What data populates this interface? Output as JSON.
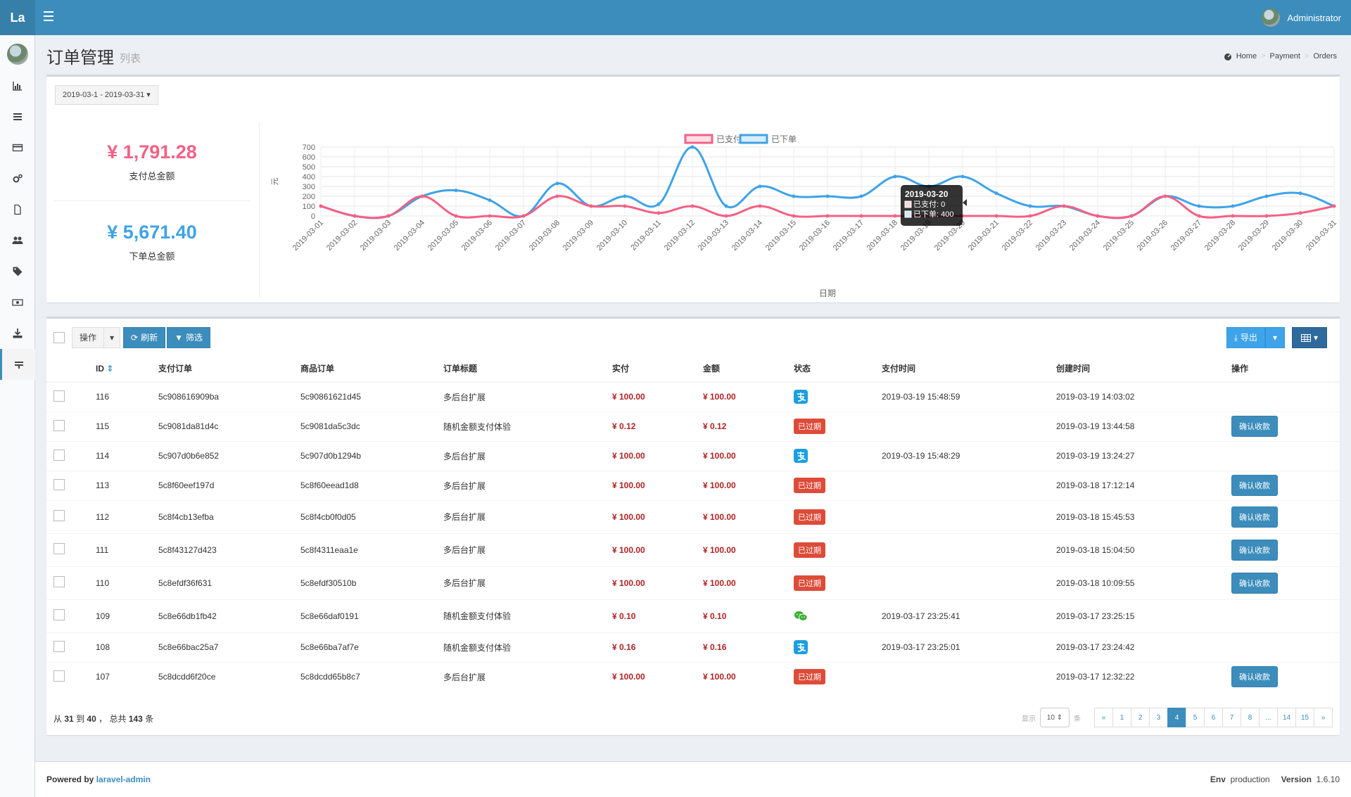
{
  "header": {
    "logo": "La",
    "user_name": "Administrator"
  },
  "page": {
    "title": "订单管理",
    "subtitle": "列表"
  },
  "breadcrumb": [
    "Home",
    "Payment",
    "Orders"
  ],
  "date_range": "2019-03-1 - 2019-03-31",
  "stats": {
    "paid_total": "¥ 1,791.28",
    "paid_label": "支付总金额",
    "order_total": "¥ 5,671.40",
    "order_label": "下单总金额"
  },
  "chart_data": {
    "type": "line",
    "legend": [
      "已支付",
      "已下单"
    ],
    "ylabel": "元",
    "xlabel": "日期",
    "ylim": [
      0,
      700
    ],
    "yticks": [
      0,
      100,
      200,
      300,
      400,
      500,
      600,
      700
    ],
    "categories": [
      "2019-03-01",
      "2019-03-02",
      "2019-03-03",
      "2019-03-04",
      "2019-03-05",
      "2019-03-06",
      "2019-03-07",
      "2019-03-08",
      "2019-03-09",
      "2019-03-10",
      "2019-03-11",
      "2019-03-12",
      "2019-03-13",
      "2019-03-14",
      "2019-03-15",
      "2019-03-16",
      "2019-03-17",
      "2019-03-18",
      "2019-03-19",
      "2019-03-20",
      "2019-03-21",
      "2019-03-22",
      "2019-03-23",
      "2019-03-24",
      "2019-03-25",
      "2019-03-26",
      "2019-03-27",
      "2019-03-28",
      "2019-03-29",
      "2019-03-30",
      "2019-03-31"
    ],
    "series": [
      {
        "name": "已支付",
        "color": "#f56084",
        "values": [
          100,
          0,
          0,
          200,
          0,
          0,
          0,
          200,
          100,
          100,
          30,
          100,
          0,
          100,
          0,
          0,
          0,
          0,
          0,
          0,
          0,
          0,
          100,
          0,
          0,
          200,
          0,
          0,
          0,
          30,
          100
        ]
      },
      {
        "name": "已下单",
        "color": "#3ea3e8",
        "values": [
          100,
          0,
          0,
          200,
          260,
          160,
          0,
          330,
          100,
          200,
          120,
          700,
          100,
          300,
          200,
          200,
          200,
          400,
          300,
          400,
          230,
          100,
          100,
          0,
          0,
          200,
          100,
          100,
          200,
          230,
          100
        ]
      }
    ],
    "tooltip": {
      "title": "2019-03-20",
      "line1": "已支付: 0",
      "line2": "已下单: 400"
    }
  },
  "toolbar": {
    "action": "操作",
    "refresh": "刷新",
    "filter": "筛选",
    "export": "导出"
  },
  "table": {
    "headers": [
      "ID",
      "支付订单",
      "商品订单",
      "订单标题",
      "实付",
      "金额",
      "状态",
      "支付时间",
      "创建时间",
      "操作"
    ],
    "confirm_label": "确认收款",
    "expired_label": "已过期",
    "rows": [
      {
        "id": "116",
        "pay_no": "5c908616909ba",
        "goods_no": "5c90861621d45",
        "title": "多后台扩展",
        "paid": "¥ 100.00",
        "amount": "¥ 100.00",
        "status": "alipay",
        "pay_time": "2019-03-19 15:48:59",
        "created": "2019-03-19 14:03:02",
        "action": false
      },
      {
        "id": "115",
        "pay_no": "5c9081da81d4c",
        "goods_no": "5c9081da5c3dc",
        "title": "随机金额支付体验",
        "paid": "¥ 0.12",
        "amount": "¥ 0.12",
        "status": "expired",
        "pay_time": "",
        "created": "2019-03-19 13:44:58",
        "action": true
      },
      {
        "id": "114",
        "pay_no": "5c907d0b6e852",
        "goods_no": "5c907d0b1294b",
        "title": "多后台扩展",
        "paid": "¥ 100.00",
        "amount": "¥ 100.00",
        "status": "alipay",
        "pay_time": "2019-03-19 15:48:29",
        "created": "2019-03-19 13:24:27",
        "action": false
      },
      {
        "id": "113",
        "pay_no": "5c8f60eef197d",
        "goods_no": "5c8f60eead1d8",
        "title": "多后台扩展",
        "paid": "¥ 100.00",
        "amount": "¥ 100.00",
        "status": "expired",
        "pay_time": "",
        "created": "2019-03-18 17:12:14",
        "action": true
      },
      {
        "id": "112",
        "pay_no": "5c8f4cb13efba",
        "goods_no": "5c8f4cb0f0d05",
        "title": "多后台扩展",
        "paid": "¥ 100.00",
        "amount": "¥ 100.00",
        "status": "expired",
        "pay_time": "",
        "created": "2019-03-18 15:45:53",
        "action": true
      },
      {
        "id": "111",
        "pay_no": "5c8f43127d423",
        "goods_no": "5c8f4311eaa1e",
        "title": "多后台扩展",
        "paid": "¥ 100.00",
        "amount": "¥ 100.00",
        "status": "expired",
        "pay_time": "",
        "created": "2019-03-18 15:04:50",
        "action": true
      },
      {
        "id": "110",
        "pay_no": "5c8efdf36f631",
        "goods_no": "5c8efdf30510b",
        "title": "多后台扩展",
        "paid": "¥ 100.00",
        "amount": "¥ 100.00",
        "status": "expired",
        "pay_time": "",
        "created": "2019-03-18 10:09:55",
        "action": true
      },
      {
        "id": "109",
        "pay_no": "5c8e66db1fb42",
        "goods_no": "5c8e66daf0191",
        "title": "随机金额支付体验",
        "paid": "¥ 0.10",
        "amount": "¥ 0.10",
        "status": "wechat",
        "pay_time": "2019-03-17 23:25:41",
        "created": "2019-03-17 23:25:15",
        "action": false
      },
      {
        "id": "108",
        "pay_no": "5c8e66bac25a7",
        "goods_no": "5c8e66ba7af7e",
        "title": "随机金额支付体验",
        "paid": "¥ 0.16",
        "amount": "¥ 0.16",
        "status": "alipay",
        "pay_time": "2019-03-17 23:25:01",
        "created": "2019-03-17 23:24:42",
        "action": false
      },
      {
        "id": "107",
        "pay_no": "5c8dcdd6f20ce",
        "goods_no": "5c8dcdd65b8c7",
        "title": "多后台扩展",
        "paid": "¥ 100.00",
        "amount": "¥ 100.00",
        "status": "expired",
        "pay_time": "",
        "created": "2019-03-17 12:32:22",
        "action": true
      }
    ]
  },
  "pagination": {
    "info_pre": "从",
    "from": "31",
    "mid1": "到",
    "to": "40",
    "mid2": "， 总共",
    "total": "143",
    "post": "条",
    "show_label": "显示",
    "per_page": "10",
    "unit": "条",
    "pages": [
      "«",
      "1",
      "2",
      "3",
      "4",
      "5",
      "6",
      "7",
      "8",
      "...",
      "14",
      "15",
      "»"
    ],
    "active": "4"
  },
  "footer": {
    "powered": "Powered by",
    "brand": "laravel-admin",
    "env_label": "Env",
    "env": "production",
    "version_label": "Version",
    "version": "1.6.10"
  }
}
